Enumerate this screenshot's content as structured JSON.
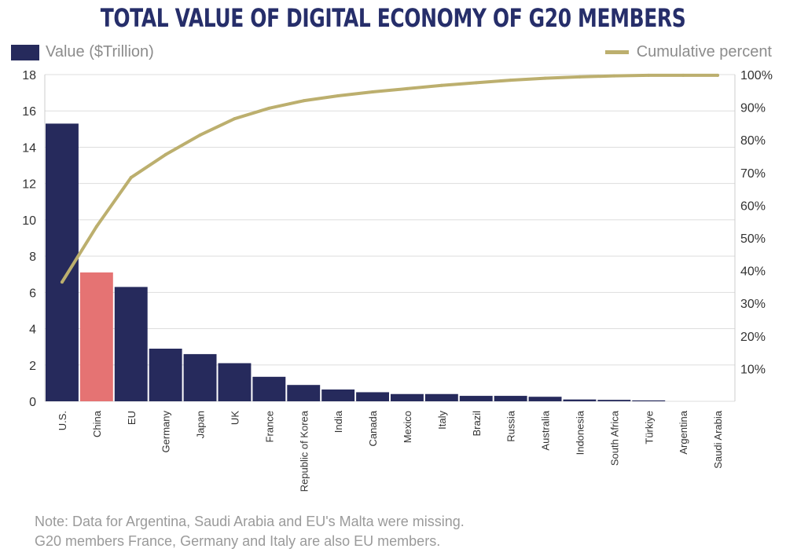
{
  "title": "TOTAL VALUE OF DIGITAL ECONOMY OF G20 MEMBERS",
  "legend": {
    "bars_label": "Value ($Trillion)",
    "line_label": "Cumulative percent"
  },
  "note": {
    "line1": "Note: Data for Argentina, Saudi Arabia and EU's Malta were missing.",
    "line2": "G20 members France, Germany and Italy are also EU members."
  },
  "colors": {
    "bar": "#262a5c",
    "highlight_bar": "#e57373",
    "line": "#bcaf6e",
    "grid": "#dddddd",
    "axis_text": "#333333"
  },
  "chart_data": {
    "type": "bar",
    "categories": [
      "U.S.",
      "China",
      "EU",
      "Germany",
      "Japan",
      "UK",
      "France",
      "Republic of Korea",
      "India",
      "Canada",
      "Mexico",
      "Italy",
      "Brazil",
      "Russia",
      "Australia",
      "Indonesia",
      "South Africa",
      "Türkiye",
      "Argentina",
      "Saudi Arabia"
    ],
    "highlight_category": "China",
    "series": [
      {
        "name": "Value ($Trillion)",
        "type": "bar",
        "axis": "left",
        "values": [
          15.3,
          7.1,
          6.3,
          2.9,
          2.6,
          2.1,
          1.35,
          0.9,
          0.65,
          0.5,
          0.4,
          0.4,
          0.3,
          0.3,
          0.25,
          0.1,
          0.08,
          0.05,
          0,
          0
        ]
      },
      {
        "name": "Cumulative percent",
        "type": "line",
        "axis": "right",
        "values": [
          36.5,
          53.5,
          68.5,
          75.5,
          81.5,
          86.5,
          89.7,
          92,
          93.5,
          94.7,
          95.7,
          96.7,
          97.5,
          98.3,
          98.9,
          99.3,
          99.6,
          99.8,
          99.8,
          99.8
        ]
      }
    ],
    "y_left": {
      "ylim": [
        0,
        18
      ],
      "ticks": [
        "0",
        "2",
        "4",
        "6",
        "8",
        "10",
        "12",
        "14",
        "16",
        "18"
      ]
    },
    "y_right": {
      "ylim": [
        0,
        100
      ],
      "ticks": [
        "10%",
        "20%",
        "30%",
        "40%",
        "50%",
        "60%",
        "70%",
        "80%",
        "90%",
        "100%"
      ],
      "tick_values": [
        10,
        20,
        30,
        40,
        50,
        60,
        70,
        80,
        90,
        100
      ]
    },
    "grid": true,
    "legend": "top"
  }
}
